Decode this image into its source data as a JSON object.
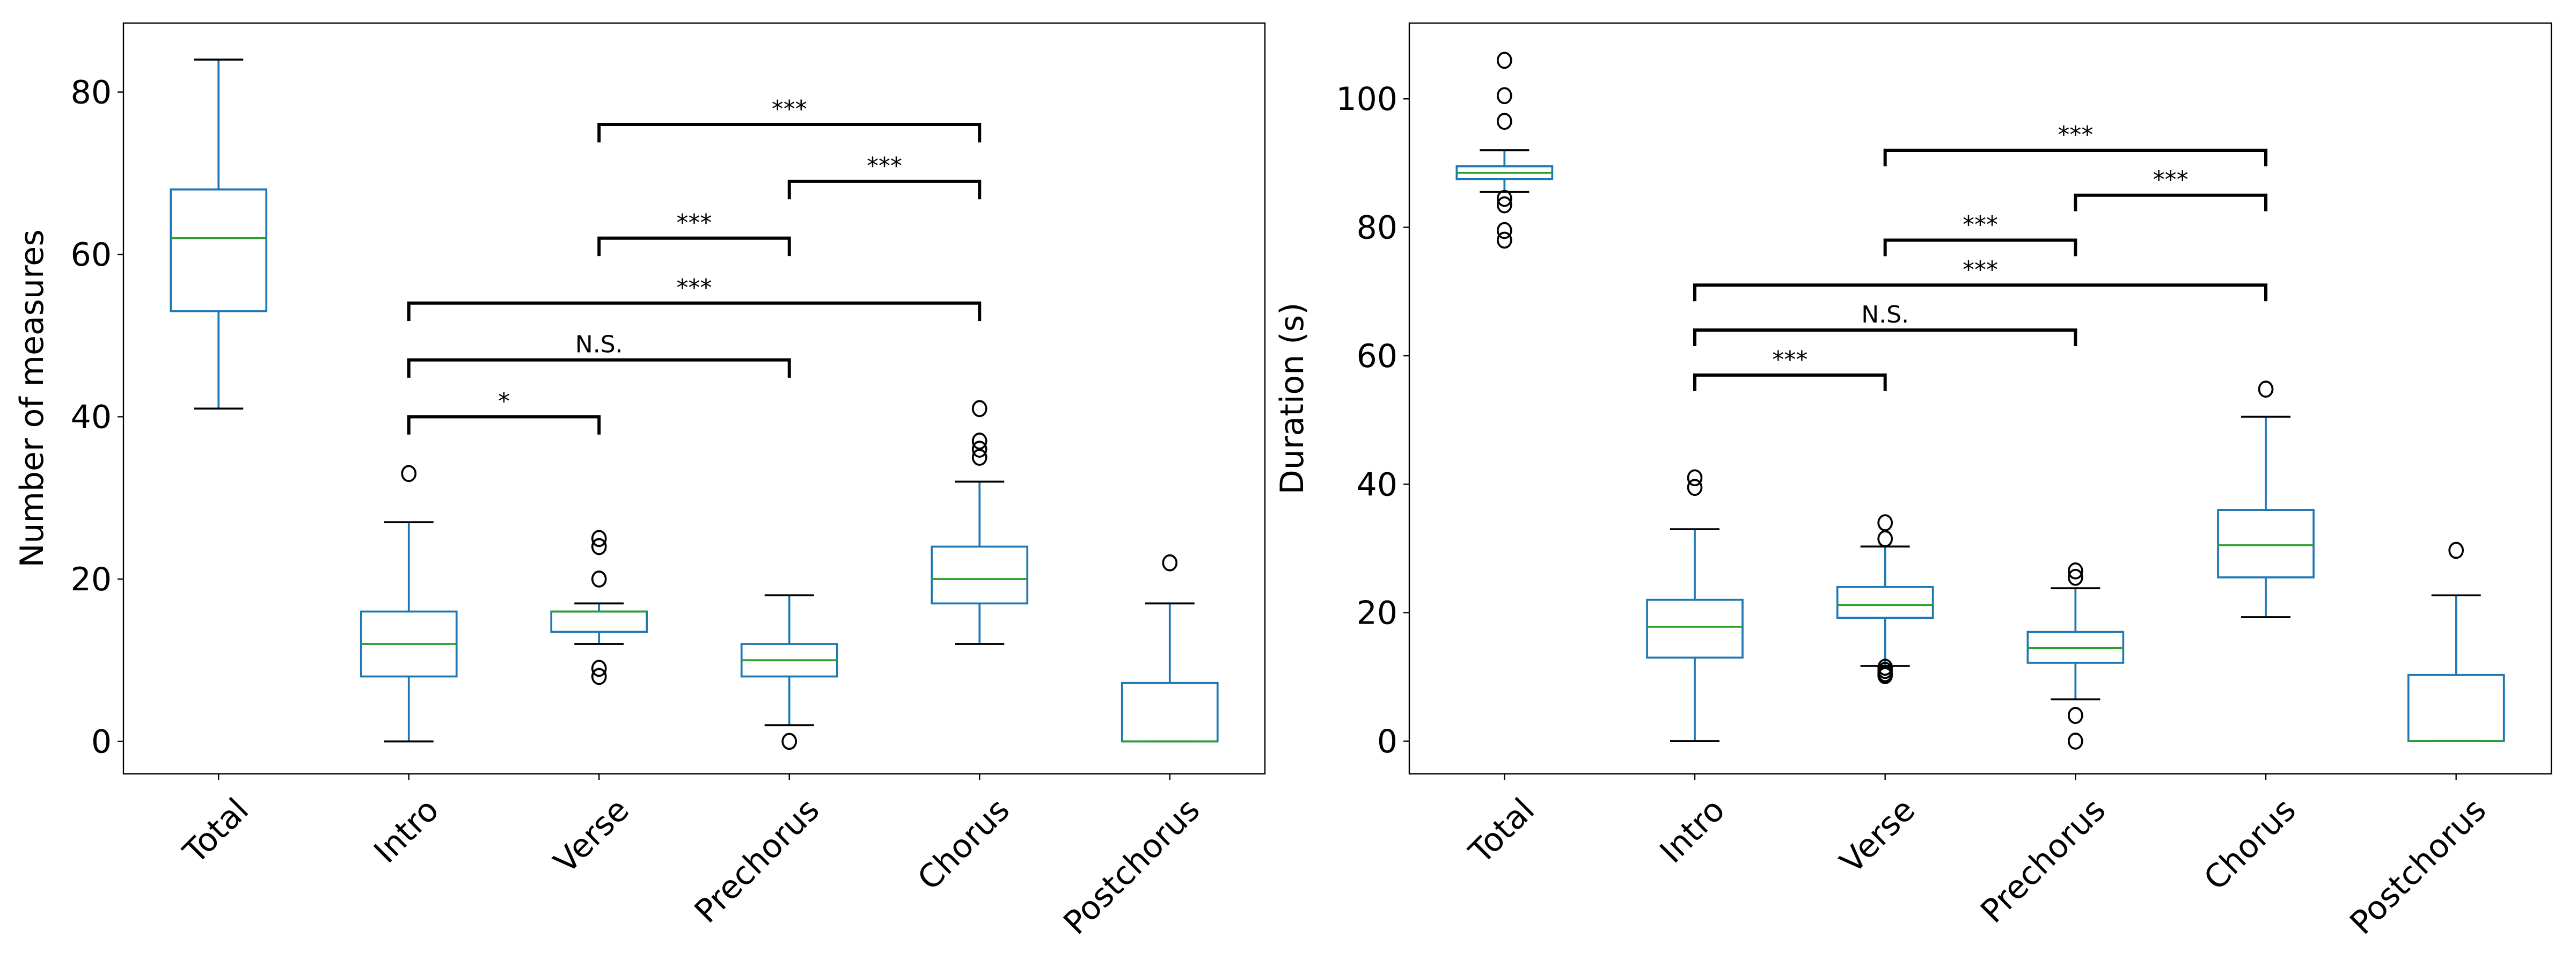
{
  "chart_data": [
    {
      "type": "box",
      "title": "",
      "xlabel": "",
      "ylabel": "Number of measures",
      "ylim": [
        -4,
        88.5
      ],
      "yticks": [
        0,
        20,
        40,
        60,
        80
      ],
      "grid": false,
      "categories": [
        "Total",
        "Intro",
        "Verse",
        "Prechorus",
        "Chorus",
        "Postchorus"
      ],
      "boxes": [
        {
          "category": "Total",
          "whisker_low": 41,
          "q1": 53,
          "median": 62,
          "q3": 68,
          "whisker_high": 84,
          "outliers": []
        },
        {
          "category": "Intro",
          "whisker_low": 0,
          "q1": 8,
          "median": 12,
          "q3": 16,
          "whisker_high": 27,
          "outliers": [
            33
          ]
        },
        {
          "category": "Verse",
          "whisker_low": 12,
          "q1": 13.5,
          "median": 16,
          "q3": 16,
          "whisker_high": 17,
          "outliers": [
            25,
            24,
            20,
            9,
            8
          ]
        },
        {
          "category": "Prechorus",
          "whisker_low": 2,
          "q1": 8,
          "median": 10,
          "q3": 12,
          "whisker_high": 18,
          "outliers": [
            0
          ]
        },
        {
          "category": "Chorus",
          "whisker_low": 12,
          "q1": 17,
          "median": 20,
          "q3": 24,
          "whisker_high": 32,
          "outliers": [
            41,
            37,
            36,
            35
          ]
        },
        {
          "category": "Postchorus",
          "whisker_low": 0,
          "q1": 0,
          "median": 0,
          "q3": 7.2,
          "whisker_high": 17,
          "outliers": [
            22
          ]
        }
      ],
      "significance": [
        {
          "from": "Verse",
          "to": "Chorus",
          "y": 76,
          "label": "***"
        },
        {
          "from": "Prechorus",
          "to": "Chorus",
          "y": 69,
          "label": "***"
        },
        {
          "from": "Verse",
          "to": "Prechorus",
          "y": 62,
          "label": "***"
        },
        {
          "from": "Intro",
          "to": "Chorus",
          "y": 54,
          "label": "***"
        },
        {
          "from": "Intro",
          "to": "Prechorus",
          "y": 47,
          "label": "N.S."
        },
        {
          "from": "Intro",
          "to": "Verse",
          "y": 40,
          "label": "*"
        }
      ],
      "bracket_drop": 2.2
    },
    {
      "type": "box",
      "title": "",
      "xlabel": "",
      "ylabel": "Duration (s)",
      "ylim": [
        -5.1,
        111.8
      ],
      "yticks": [
        0,
        20,
        40,
        60,
        80,
        100
      ],
      "grid": false,
      "categories": [
        "Total",
        "Intro",
        "Verse",
        "Prechorus",
        "Chorus",
        "Postchorus"
      ],
      "boxes": [
        {
          "category": "Total",
          "whisker_low": 85.5,
          "q1": 87.5,
          "median": 88.5,
          "q3": 89.5,
          "whisker_high": 92,
          "outliers": [
            106,
            100.5,
            96.5,
            84.5,
            83.5,
            79.5,
            78
          ]
        },
        {
          "category": "Intro",
          "whisker_low": 0,
          "q1": 13,
          "median": 17.8,
          "q3": 22,
          "whisker_high": 33,
          "outliers": [
            41,
            39.5
          ]
        },
        {
          "category": "Verse",
          "whisker_low": 11.7,
          "q1": 19.2,
          "median": 21.2,
          "q3": 24,
          "whisker_high": 30.3,
          "outliers": [
            34,
            31.5,
            11.5,
            11,
            10.5,
            10.2
          ]
        },
        {
          "category": "Prechorus",
          "whisker_low": 6.5,
          "q1": 12.2,
          "median": 14.5,
          "q3": 17,
          "whisker_high": 23.8,
          "outliers": [
            26.5,
            25.5,
            4,
            0
          ]
        },
        {
          "category": "Chorus",
          "whisker_low": 19.3,
          "q1": 25.5,
          "median": 30.5,
          "q3": 36,
          "whisker_high": 50.5,
          "outliers": [
            54.8
          ]
        },
        {
          "category": "Postchorus",
          "whisker_low": 0,
          "q1": 0,
          "median": 0,
          "q3": 10.3,
          "whisker_high": 22.7,
          "outliers": [
            29.7
          ]
        }
      ],
      "significance": [
        {
          "from": "Verse",
          "to": "Chorus",
          "y": 92,
          "label": "***"
        },
        {
          "from": "Prechorus",
          "to": "Chorus",
          "y": 85,
          "label": "***"
        },
        {
          "from": "Verse",
          "to": "Prechorus",
          "y": 78,
          "label": "***"
        },
        {
          "from": "Intro",
          "to": "Chorus",
          "y": 71,
          "label": "***"
        },
        {
          "from": "Intro",
          "to": "Prechorus",
          "y": 64,
          "label": "N.S."
        },
        {
          "from": "Intro",
          "to": "Verse",
          "y": 57,
          "label": "***"
        }
      ],
      "bracket_drop": 2.5
    }
  ],
  "colors": {
    "box": "#1f77b4",
    "median": "#2ca02c",
    "whisker_cap": "#000000",
    "outlier": "#000000",
    "bracket": "#000000"
  }
}
